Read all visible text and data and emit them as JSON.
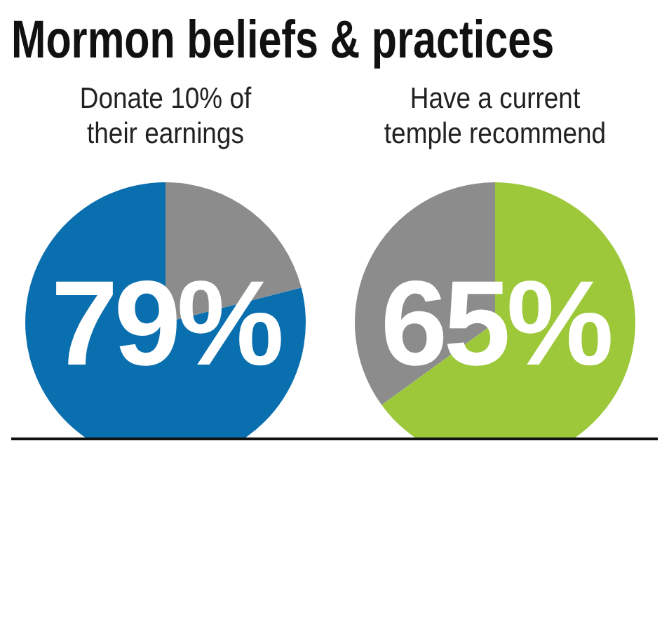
{
  "chart_data": [
    {
      "type": "pie",
      "title": "Mormon beliefs & practices",
      "subtitle": "Donate 10% of\ntheir earnings",
      "categories": [
        null,
        null
      ],
      "values": [
        21,
        79
      ],
      "colors": [
        "#8c8c8c",
        "#0a6fae"
      ],
      "value_labels": [
        null,
        "79%"
      ]
    },
    {
      "type": "pie",
      "subtitle": "Have a current\ntemple recommend",
      "categories": [
        null,
        null
      ],
      "values": [
        65,
        35
      ],
      "colors": [
        "#9cc83a",
        "#8c8c8c"
      ],
      "value_labels": [
        "65%",
        null
      ]
    }
  ]
}
